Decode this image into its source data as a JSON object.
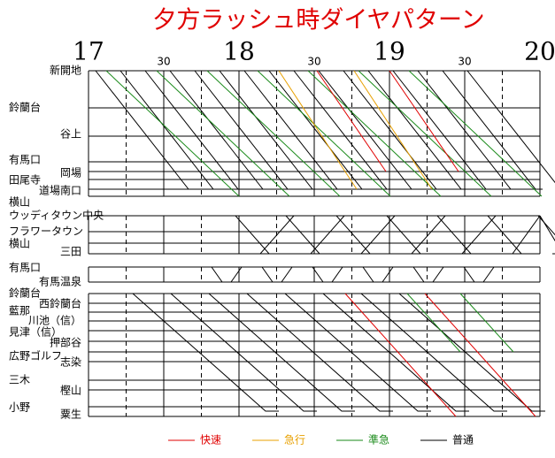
{
  "title": "夕方ラッシュ時ダイヤパターン",
  "hours": [
    "17",
    "18",
    "19",
    "20"
  ],
  "half_hours": [
    "30",
    "30",
    "30"
  ],
  "stations": [
    "新開地",
    "鈴蘭台",
    "谷上",
    "有馬口",
    "岡場",
    "田尾寺",
    "道場南口",
    "横山",
    "ウッディタウン中央",
    "フラワータウン",
    "横山",
    "三田",
    "有馬口",
    "有馬温泉",
    "鈴蘭台",
    "西鈴蘭台",
    "藍那",
    "川池（信）",
    "見津（信）",
    "押部谷",
    "広野ゴルフ",
    "志染",
    "三木",
    "樫山",
    "小野",
    "粟生"
  ],
  "legend": [
    {
      "label": "快速",
      "color": "#e00000"
    },
    {
      "label": "急行",
      "color": "#e8a000"
    },
    {
      "label": "準急",
      "color": "#1a8a1a"
    },
    {
      "label": "普通",
      "color": "#000000"
    }
  ]
}
